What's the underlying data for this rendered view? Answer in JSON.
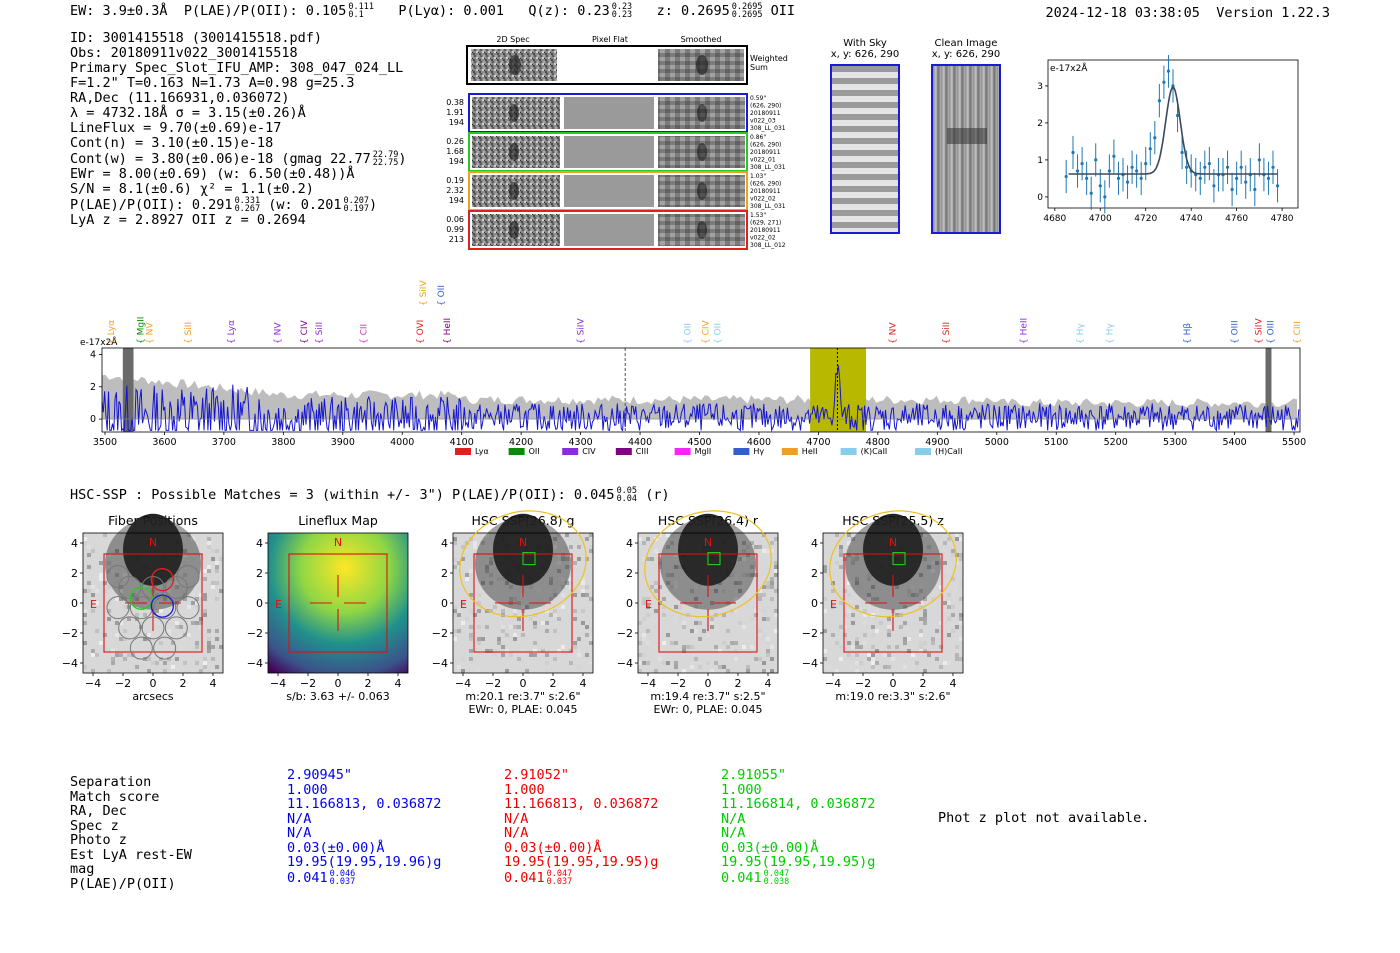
{
  "header": {
    "ew": "EW: 3.9±0.3Å",
    "plae_label": "P(LAE)/P(OII): 0.105",
    "plae_hi": "0.111",
    "plae_lo": "0.1",
    "plya": "P(Lyα): 0.001",
    "qz_label": "Q(z): 0.23",
    "qz_hi": "0.23",
    "qz_lo": "0.23",
    "z_label": "z: 0.2695",
    "z_hi": "0.2695",
    "z_lo": "0.2695",
    "z_line": "OII",
    "timestamp": "2024-12-18 03:38:05",
    "version": "Version 1.22.3"
  },
  "info": {
    "id": "ID: 3001415518 (3001415518.pdf)",
    "obs": "Obs: 20180911v022_3001415518",
    "primary": "Primary Spec_Slot_IFU_AMP: 308_047_024_LL",
    "fline": "F=1.2\"  T=0.163  N=1.73  A=0.98  g=25.3",
    "radec": "RA,Dec (11.166931,0.036072)",
    "lambda": "λ = 4732.18Å  σ = 3.15(±0.26)Å",
    "lineflux": "LineFlux = 9.70(±0.69)e-17",
    "contn": "Cont(n) = 3.10(±0.15)e-18",
    "contw": "Cont(w) = 3.80(±0.06)e-18 (gmag 22.77",
    "contw_hi": "22.79",
    "contw_lo": "22.75",
    "contw_end": ")",
    "ewr": "EWr = 8.00(±0.69) (w: 6.50(±0.48))Å",
    "sn": "S/N = 8.1(±0.6)  χ² = 1.1(±0.2)",
    "plae": "P(LAE)/P(OII): 0.291",
    "plae_hi": "0.331",
    "plae_lo": "0.267",
    "plae_w": "(w: 0.201",
    "plae_w_hi": "0.207",
    "plae_w_lo": "0.197",
    "plae_w_end": ")",
    "lyaz": "LyA z = 2.8927  OII z = 0.2694"
  },
  "spec2d": {
    "col_headers": [
      "2D Spec",
      "Pixel Flat",
      "Smoothed"
    ],
    "weighted_sum": "Weighted\nSum",
    "rows": [
      {
        "left": [
          "0.38",
          "1.91",
          "194"
        ],
        "right": [
          "0.59\"",
          "(626, 290)",
          "20180911",
          "v022_03",
          "308_LL_031"
        ],
        "color": "#1a1ad8"
      },
      {
        "left": [
          "0.26",
          "1.68",
          "194"
        ],
        "right": [
          "0.86\"",
          "(626, 290)",
          "20180911",
          "v022_01",
          "308_LL_031"
        ],
        "color": "#22cc22"
      },
      {
        "left": [
          "0.19",
          "2.32",
          "194"
        ],
        "right": [
          "1.03\"",
          "(626, 290)",
          "20180911",
          "v022_02",
          "308_LL_031"
        ],
        "color": "#f0a020"
      },
      {
        "left": [
          "0.06",
          "0.99",
          "213"
        ],
        "right": [
          "1.53\"",
          "(629, 271)",
          "20180911",
          "v022_02",
          "308_LL_012"
        ],
        "color": "#e02020"
      }
    ]
  },
  "with_sky": {
    "title": "With Sky",
    "coords": "x, y: 626, 290"
  },
  "clean_image": {
    "title": "Clean Image",
    "coords": "x, y: 626, 290"
  },
  "chart_data": [
    {
      "type": "line",
      "title": "",
      "ylabel": "e-17x2Å",
      "x_ticks": [
        4680,
        4700,
        4720,
        4740,
        4760,
        4780
      ],
      "y_ticks": [
        0,
        1,
        2,
        3
      ],
      "xlim": [
        4677,
        4787
      ],
      "ylim": [
        -0.3,
        3.7
      ],
      "points_x": [
        4685,
        4688,
        4690,
        4692,
        4694,
        4696,
        4698,
        4700,
        4702,
        4704,
        4706,
        4708,
        4710,
        4712,
        4714,
        4716,
        4718,
        4720,
        4722,
        4724,
        4726,
        4728,
        4730,
        4732,
        4734,
        4736,
        4738,
        4740,
        4742,
        4744,
        4746,
        4748,
        4750,
        4752,
        4754,
        4756,
        4758,
        4760,
        4762,
        4764,
        4766,
        4768,
        4770,
        4772,
        4774,
        4776,
        4778
      ],
      "points_y": [
        0.55,
        1.2,
        0.7,
        0.9,
        0.5,
        0.1,
        1.0,
        0.3,
        0.0,
        0.7,
        1.1,
        0.5,
        0.6,
        0.4,
        0.8,
        0.7,
        0.5,
        0.9,
        1.3,
        1.6,
        2.6,
        3.1,
        3.4,
        3.0,
        2.2,
        1.2,
        0.8,
        0.7,
        0.6,
        0.5,
        0.8,
        0.9,
        0.3,
        0.6,
        0.6,
        0.8,
        0.2,
        0.5,
        0.8,
        0.4,
        0.6,
        0.2,
        1.0,
        0.6,
        0.5,
        0.8,
        0.3
      ],
      "fit_center": 4732,
      "fit_sigma": 3.2,
      "fit_amp": 2.35,
      "fit_base": 0.62
    },
    {
      "type": "line",
      "title": "",
      "ylabel": "e-17x2Å",
      "x_ticks": [
        3500,
        3600,
        3700,
        3800,
        3900,
        4000,
        4100,
        4200,
        4300,
        4400,
        4500,
        4600,
        4700,
        4800,
        4900,
        5000,
        5100,
        5200,
        5300,
        5400,
        5500
      ],
      "y_ticks": [
        0,
        2,
        4
      ],
      "xlim": [
        3495,
        5510
      ],
      "ylim": [
        -0.8,
        4.4
      ],
      "line_markers": [
        {
          "name": "Lyα",
          "wave": 3510,
          "color": "#f0a020"
        },
        {
          "name": "MgII",
          "wave": 3560,
          "color": "#0a8a0a"
        },
        {
          "name": "NV",
          "wave": 3575,
          "color": "#f0a020"
        },
        {
          "name": "SiII",
          "wave": 3640,
          "color": "#f0a020"
        },
        {
          "name": "Lyα",
          "wave": 3712,
          "color": "#8a2be2"
        },
        {
          "name": "NV",
          "wave": 3790,
          "color": "#8a2be2"
        },
        {
          "name": "CIV",
          "wave": 3835,
          "color": "#800080"
        },
        {
          "name": "SiII",
          "wave": 3860,
          "color": "#8a2be2"
        },
        {
          "name": "CII",
          "wave": 3935,
          "color": "#cc33cc"
        },
        {
          "name": "OVI",
          "wave": 4030,
          "color": "#e02020"
        },
        {
          "name": "HeII",
          "wave": 4075,
          "color": "#800080"
        },
        {
          "name": "SiIV",
          "wave": 4035,
          "color": "#f0a020",
          "high": true
        },
        {
          "name": "OII",
          "wave": 4065,
          "color": "#3060d0",
          "high": true
        },
        {
          "name": "SiIV",
          "wave": 4300,
          "color": "#8a2be2"
        },
        {
          "name": "OII",
          "wave": 4480,
          "color": "#87ceeb"
        },
        {
          "name": "CIV",
          "wave": 4510,
          "color": "#f0a020"
        },
        {
          "name": "OII",
          "wave": 4530,
          "color": "#87ceeb"
        },
        {
          "name": "NV",
          "wave": 4825,
          "color": "#e02020"
        },
        {
          "name": "SiII",
          "wave": 4915,
          "color": "#e02020"
        },
        {
          "name": "HeII",
          "wave": 5045,
          "color": "#8a2be2"
        },
        {
          "name": "Hγ",
          "wave": 5140,
          "color": "#87ceeb"
        },
        {
          "name": "Hγ",
          "wave": 5190,
          "color": "#87ceeb"
        },
        {
          "name": "Hβ",
          "wave": 5320,
          "color": "#3060d0"
        },
        {
          "name": "OIII",
          "wave": 5400,
          "color": "#3060d0"
        },
        {
          "name": "SiIV",
          "wave": 5440,
          "color": "#e02020"
        },
        {
          "name": "OIII",
          "wave": 5460,
          "color": "#3060d0"
        },
        {
          "name": "CIII",
          "wave": 5505,
          "color": "#f0a020"
        }
      ],
      "highlight_band": [
        4686,
        4780
      ],
      "peak_wave": 4732,
      "dashed_wave": 4375,
      "masked_bands": [
        [
          3530,
          3548
        ],
        [
          5452,
          5462
        ]
      ],
      "legend": [
        {
          "label": "Lyα",
          "color": "#e02020"
        },
        {
          "label": "OII",
          "color": "#0a8a0a"
        },
        {
          "label": "CIV",
          "color": "#8a2be2"
        },
        {
          "label": "CIII",
          "color": "#800080"
        },
        {
          "label": "MgII",
          "color": "#ff22ff"
        },
        {
          "label": "Hγ",
          "color": "#3060d0"
        },
        {
          "label": "HeII",
          "color": "#f0a020"
        },
        {
          "label": "(K)CaII",
          "color": "#87ceeb"
        },
        {
          "label": "(H)CaII",
          "color": "#87ceeb"
        }
      ]
    }
  ],
  "hsc": {
    "summary": "HSC-SSP : Possible Matches = 3 (within +/- 3\")  P(LAE)/P(OII): 0.045",
    "summary_hi": "0.05",
    "summary_lo": "0.04",
    "summary_end": "(r)",
    "panels": [
      {
        "title": "Fiber Positions",
        "xlabel": "arcsecs",
        "kind": "fiber"
      },
      {
        "title": "Lineflux Map",
        "xlabel": "s/b: 3.63 +/- 0.063",
        "kind": "flux"
      },
      {
        "title": "HSC SSP(26.8) g",
        "xlabel": "m:20.1  re:3.7\"  s:2.6\"",
        "xlabel2": "EWr: 0, PLAE: 0.045",
        "kind": "hsc"
      },
      {
        "title": "HSC SSP(26.4) r",
        "xlabel": "m:19.4  re:3.7\"  s:2.5\"",
        "xlabel2": "EWr: 0, PLAE: 0.045",
        "kind": "hsc"
      },
      {
        "title": "HSC SSP(25.5) z",
        "xlabel": "m:19.0  re:3.3\"  s:2.6\"",
        "kind": "hsc"
      }
    ],
    "axis_ticks": [
      "4",
      "2",
      "0",
      "−2",
      "−4"
    ],
    "x_ticks": [
      "−4",
      "−2",
      "0",
      "2",
      "4"
    ],
    "north": "N",
    "east": "E"
  },
  "matches": {
    "labels": [
      "Separation",
      "Match score",
      "RA, Dec",
      "Spec z",
      "Photo z",
      "Est LyA rest-EW",
      "mag",
      "P(LAE)/P(OII)"
    ],
    "columns": [
      {
        "color": "#0000ee",
        "values": [
          "2.90945\"",
          "1.000",
          "11.166813, 0.036872",
          "N/A",
          "N/A",
          "0.03(±0.00)Å",
          "19.95(19.95,19.96)g",
          "0.041"
        ],
        "plae_hi": "0.046",
        "plae_lo": "0.037"
      },
      {
        "color": "#ee0000",
        "values": [
          "2.91052\"",
          "1.000",
          "11.166813, 0.036872",
          "N/A",
          "N/A",
          "0.03(±0.00)Å",
          "19.95(19.95,19.95)g",
          "0.041"
        ],
        "plae_hi": "0.047",
        "plae_lo": "0.037"
      },
      {
        "color": "#00cc00",
        "values": [
          "2.91055\"",
          "1.000",
          "11.166814, 0.036872",
          "N/A",
          "N/A",
          "0.03(±0.00)Å",
          "19.95(19.95,19.95)g",
          "0.041"
        ],
        "plae_hi": "0.047",
        "plae_lo": "0.038"
      }
    ],
    "phot_z_note": "Phot z plot not available."
  }
}
